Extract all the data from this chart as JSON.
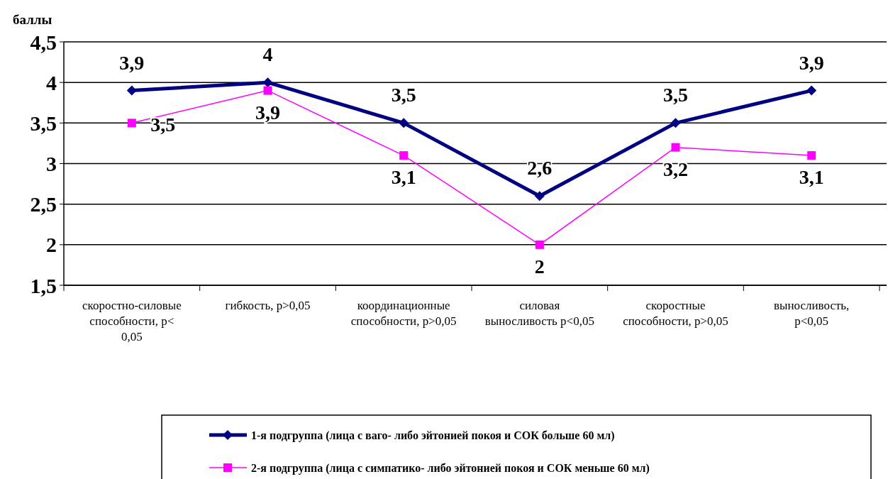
{
  "chart_data": {
    "type": "line",
    "ylabel": "баллы",
    "categories": [
      "скоростно-силовые способности, p< 0,05",
      "гибкость, p>0,05",
      "координационные способности, p>0,05",
      "силовая выносливость p<0,05",
      "скоростные способности, p>0,05",
      "выносливость, p<0,05"
    ],
    "series": [
      {
        "name": "1-я подгруппа (лица с ваго- либо эйтонией покоя и СОК больше 60 мл)",
        "color": "#000080",
        "values": [
          3.9,
          4,
          3.5,
          2.6,
          3.5,
          3.9
        ],
        "value_labels": [
          "3,9",
          "4",
          "3,5",
          "2,6",
          "3,5",
          "3,9"
        ],
        "marker": "diamond"
      },
      {
        "name": "2-я подгруппа (лица с симпатико- либо эйтонией покоя и СОК меньше 60 мл)",
        "color": "#ff00ff",
        "values": [
          3.5,
          3.9,
          3.1,
          2,
          3.2,
          3.1
        ],
        "value_labels": [
          "3,5",
          "3,9",
          "3,1",
          "2",
          "3,2",
          "3,1"
        ],
        "marker": "square"
      }
    ],
    "ylim": [
      1.5,
      4.5
    ],
    "yticks": [
      {
        "value": 1.5,
        "label": "1,5"
      },
      {
        "value": 2,
        "label": "2"
      },
      {
        "value": 2.5,
        "label": "2,5"
      },
      {
        "value": 3,
        "label": "3"
      },
      {
        "value": 3.5,
        "label": "3,5"
      },
      {
        "value": 4,
        "label": "4"
      },
      {
        "value": 4.5,
        "label": "4,5"
      }
    ],
    "grid": "y",
    "legend": "bottom"
  }
}
